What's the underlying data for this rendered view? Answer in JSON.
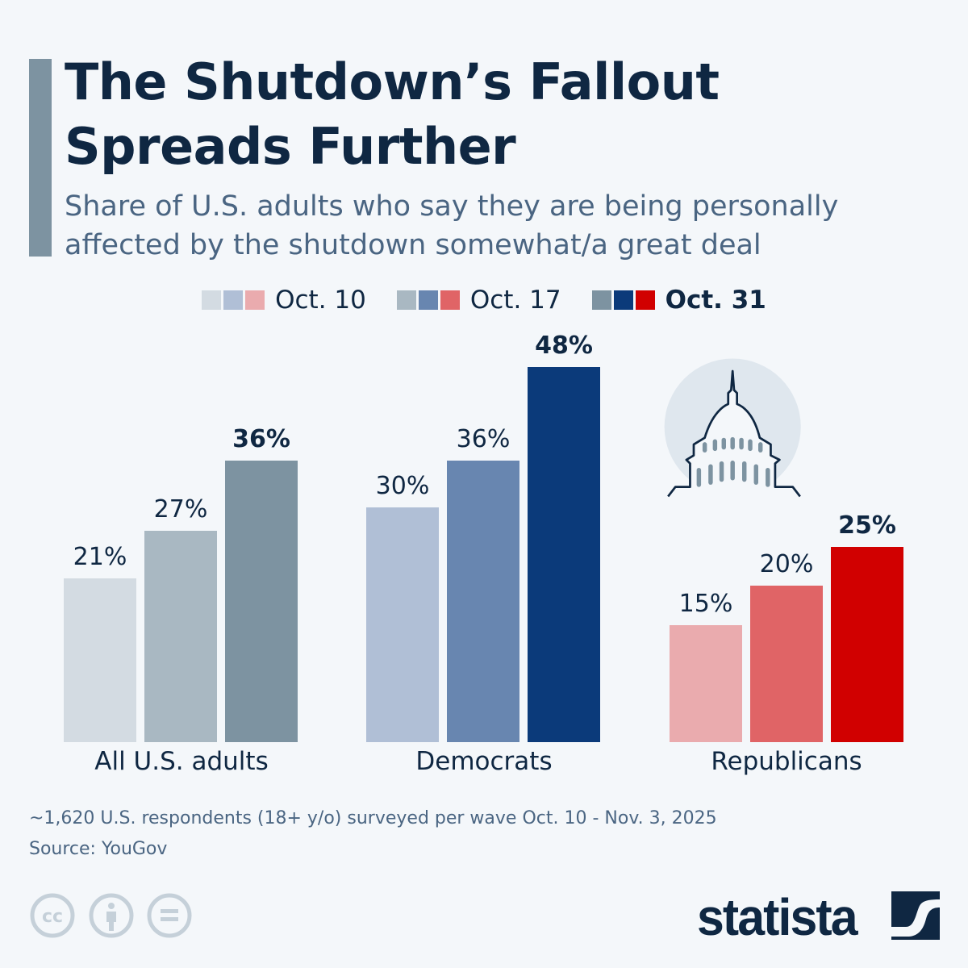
{
  "header": {
    "title_line1": "The Shutdown’s Fallout",
    "title_line2": "Spreads Further",
    "subtitle_line1": "Share of U.S. adults who say they are being personally",
    "subtitle_line2": "affected by the shutdown somewhat/a great deal"
  },
  "chart_data": {
    "type": "bar",
    "categories": [
      "All U.S. adults",
      "Democrats",
      "Republicans"
    ],
    "series": [
      {
        "name": "Oct. 10",
        "values": [
          21,
          30,
          15
        ],
        "labels": [
          "21%",
          "30%",
          "15%"
        ]
      },
      {
        "name": "Oct. 17",
        "values": [
          27,
          36,
          20
        ],
        "labels": [
          "27%",
          "36%",
          "20%"
        ]
      },
      {
        "name": "Oct. 31",
        "values": [
          36,
          48,
          25
        ],
        "labels": [
          "36%",
          "48%",
          "25%"
        ]
      }
    ],
    "unit": "%",
    "ylim": [
      0,
      48
    ],
    "grid": false,
    "legend_placement": "top-center",
    "colors": [
      [
        "#d3dbe2",
        "#a9b8c2",
        "#7d93a1"
      ],
      [
        "#b0bfd6",
        "#6886b0",
        "#0b3a7a"
      ],
      [
        "#eaabae",
        "#e06466",
        "#d10000"
      ]
    ]
  },
  "footer": {
    "note": "~1,620 U.S. respondents (18+ y/o) surveyed per wave Oct. 10 - Nov. 3, 2025",
    "source": "Source: YouGov",
    "brand": "statista",
    "icons": [
      "cc-icon",
      "attribution-icon",
      "no-derivatives-icon"
    ]
  }
}
